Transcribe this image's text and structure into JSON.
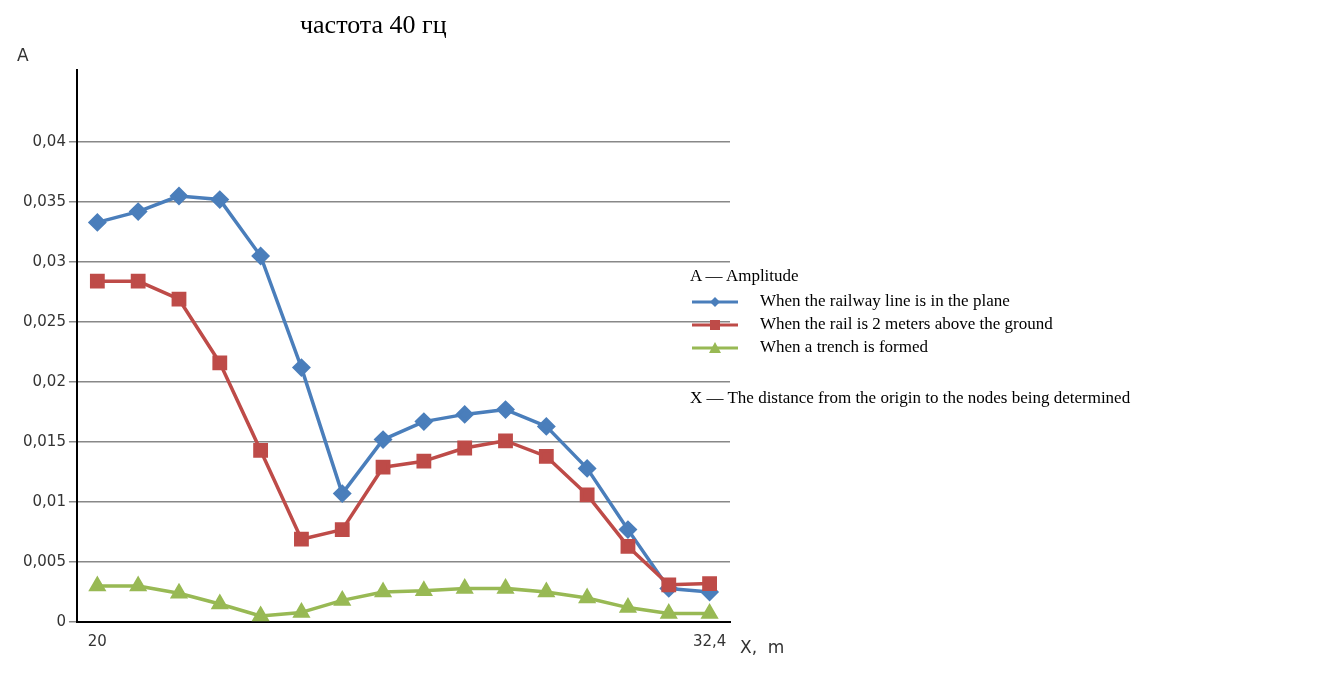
{
  "chart_data": {
    "type": "line",
    "title": "частота 40 гц",
    "xlabel": "X,  m",
    "ylabel": "A",
    "categories": [
      "20",
      null,
      null,
      null,
      null,
      null,
      null,
      null,
      null,
      null,
      null,
      null,
      null,
      null,
      null,
      "32,4"
    ],
    "series": [
      {
        "name": "When the railway line is in the plane",
        "color": "#4a7ebb",
        "marker": "diamond",
        "values": [
          0.0333,
          0.0342,
          0.0355,
          0.0352,
          0.0305,
          0.0212,
          0.0107,
          0.0152,
          0.0167,
          0.0173,
          0.0177,
          0.0163,
          0.0128,
          0.0077,
          0.0028,
          0.0025
        ]
      },
      {
        "name": "When the rail is 2 meters above the ground",
        "color": "#be4b48",
        "marker": "square",
        "values": [
          0.0284,
          0.0284,
          0.0269,
          0.0216,
          0.0143,
          0.0069,
          0.0077,
          0.0129,
          0.0134,
          0.0145,
          0.0151,
          0.0138,
          0.0106,
          0.0063,
          0.0031,
          0.0032
        ]
      },
      {
        "name": "When a trench is formed",
        "color": "#98b954",
        "marker": "triangle",
        "values": [
          0.003,
          0.003,
          0.0024,
          0.0015,
          0.0005,
          0.0008,
          0.0018,
          0.0025,
          0.0026,
          0.0028,
          0.0028,
          0.0025,
          0.002,
          0.0012,
          0.0007,
          0.0007
        ]
      }
    ],
    "ylim": [
      0,
      0.046
    ],
    "yticks": [
      0,
      {
        "value": 0.005,
        "label": "0,005"
      },
      {
        "value": 0.01,
        "label": "0,01"
      },
      {
        "value": 0.015,
        "label": "0,015"
      },
      {
        "value": 0.02,
        "label": "0,02"
      },
      {
        "value": 0.025,
        "label": "0,025"
      },
      {
        "value": 0.03,
        "label": "0,03"
      },
      {
        "value": 0.035,
        "label": "0,035"
      },
      {
        "value": 0.04,
        "label": "0,04"
      }
    ],
    "grid": "y",
    "legend": "right",
    "line_style": "solid",
    "annotations": [
      "A — Amplitude",
      "X — The distance from the origin to the nodes being determined"
    ]
  }
}
